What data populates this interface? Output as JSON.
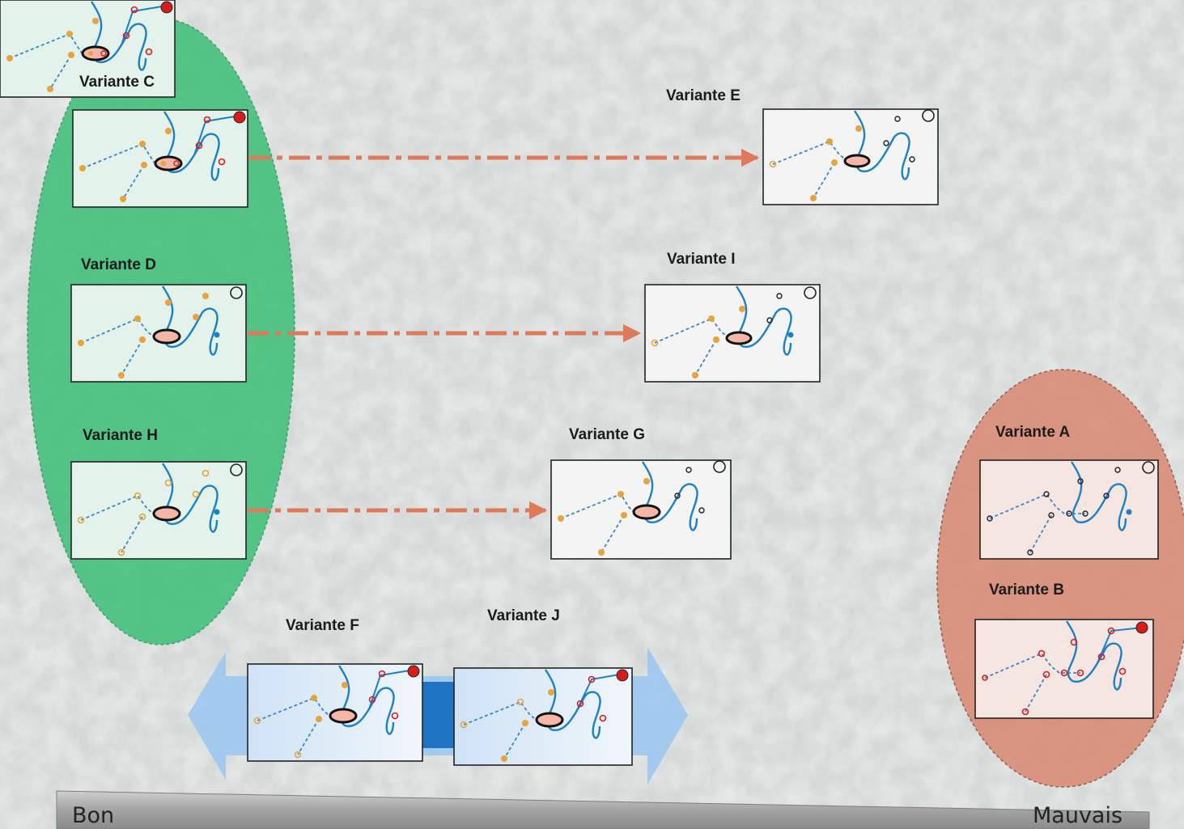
{
  "variants": {
    "c": "Variante C",
    "d": "Variante D",
    "h": "Variante H",
    "e": "Variante E",
    "i": "Variante I",
    "g": "Variante G",
    "f": "Variante F",
    "j": "Variante J",
    "a": "Variante A",
    "b": "Variante B"
  },
  "scale": {
    "left_label": "Bon",
    "right_label": "Mauvais"
  },
  "colors": {
    "good_group": "#3cbf77",
    "bad_group": "#d98872",
    "arrow": "#de7a5a",
    "river": "#1b80c8",
    "path": "#3a86c9",
    "dot_orange": "#e8a33a",
    "dot_red": "#d81c1c",
    "double_arrow": "#9cc8f0",
    "connector": "#1e73c3"
  }
}
